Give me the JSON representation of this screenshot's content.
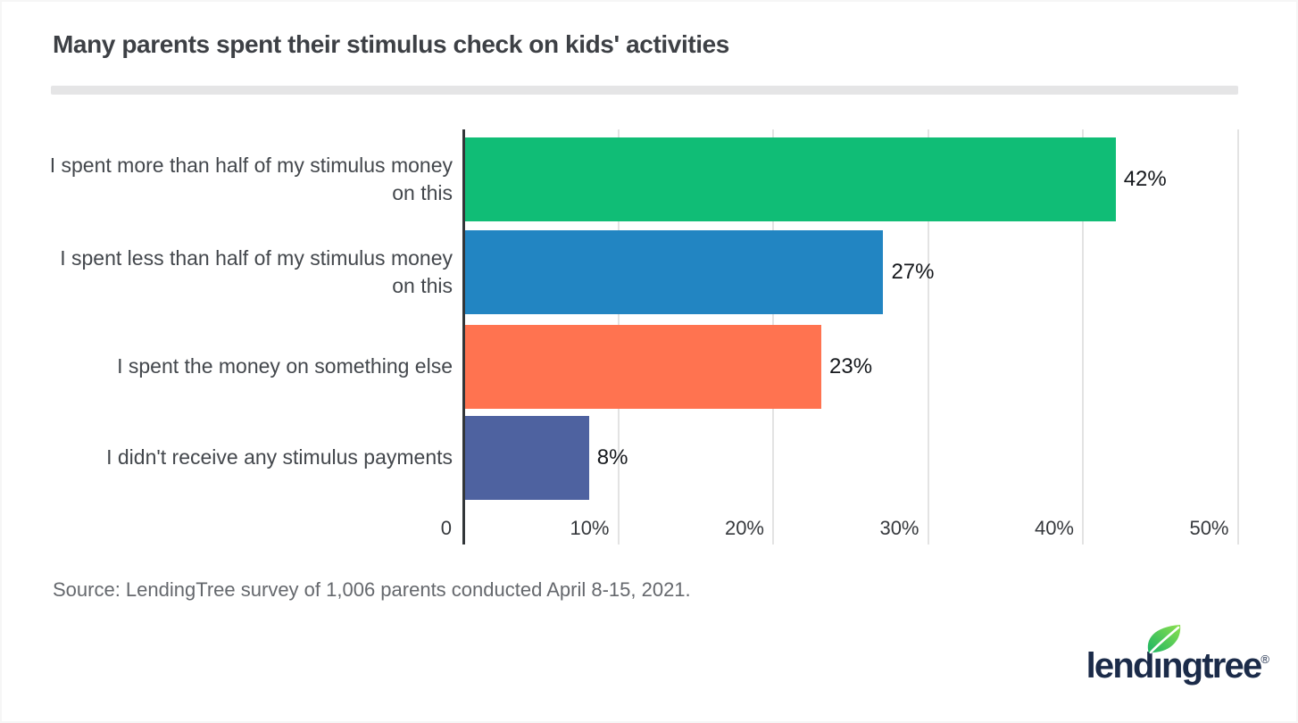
{
  "source": {
    "text": "Source: LendingTree survey of 1,006 parents conducted April 8-15, 2021."
  },
  "logo": {
    "full_text": "lendingtree",
    "part_before": "lend",
    "part_i": "ı",
    "part_after": "ngtree",
    "registered": "®",
    "navy": "#1b2b49",
    "leaf_green_dark": "#1ab464",
    "leaf_green_light": "#8ce04e"
  },
  "chart_data": {
    "type": "bar",
    "orientation": "horizontal",
    "title": "Many parents spent their stimulus check on kids' activities",
    "categories": [
      "I spent more than half of my stimulus money on this",
      "I spent less than half of my stimulus money on this",
      "I spent the money on something else",
      "I didn't receive any stimulus payments"
    ],
    "category_display": [
      "I spent more than half of my stimulus money\non this",
      "I spent less than half of my stimulus money\non this",
      "I spent the money on something else",
      "I didn't receive any stimulus payments"
    ],
    "values": [
      42,
      27,
      23,
      8
    ],
    "data_labels": [
      "42%",
      "27%",
      "23%",
      "8%"
    ],
    "bar_colors": [
      "#10bd76",
      "#2285c2",
      "#ff7350",
      "#4e62a0"
    ],
    "x_ticks": [
      {
        "value": 0,
        "label": "0"
      },
      {
        "value": 10,
        "label": "10%"
      },
      {
        "value": 20,
        "label": "20%"
      },
      {
        "value": 30,
        "label": "30%"
      },
      {
        "value": 40,
        "label": "40%"
      },
      {
        "value": 50,
        "label": "50%"
      }
    ],
    "xlim": [
      0,
      50
    ],
    "grid": true,
    "legend": false
  }
}
